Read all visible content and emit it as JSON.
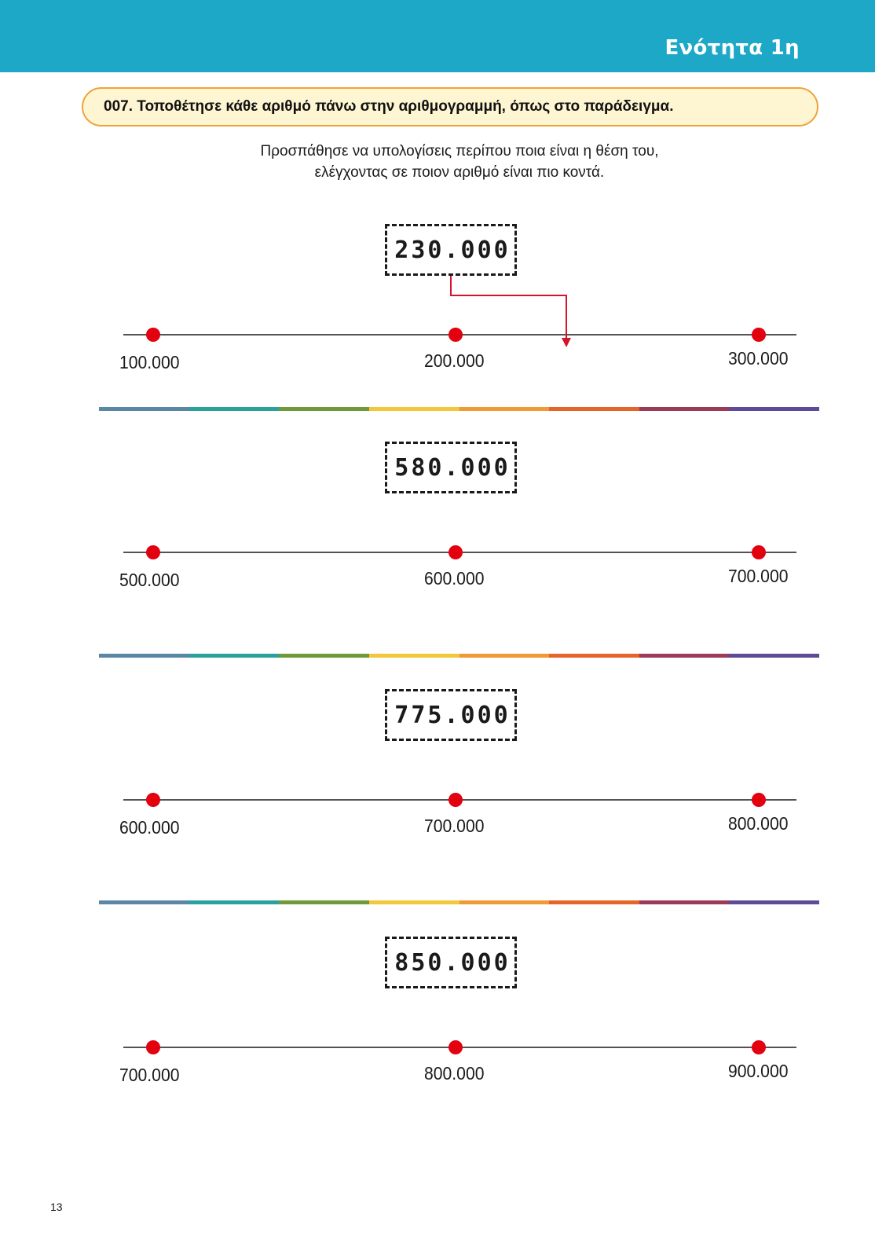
{
  "header": {
    "section_title": "Ενότητα 1η",
    "band_color": "#1da8c7"
  },
  "task": {
    "title": "007. Τοποθέτησε κάθε αριθμό πάνω στην αριθμογραμμή, όπως στο παράδειγμα.",
    "instruction_line1": "Προσπάθησε να υπολογίσεις περίπου ποια είναι η θέση του,",
    "instruction_line2": "ελέγχοντας σε ποιον αριθμό είναι πιο κοντά."
  },
  "exercises": [
    {
      "target": "230.000",
      "ticks": [
        "100.000",
        "200.000",
        "300.000"
      ],
      "example": true
    },
    {
      "target": "580.000",
      "ticks": [
        "500.000",
        "600.000",
        "700.000"
      ],
      "example": false
    },
    {
      "target": "775.000",
      "ticks": [
        "600.000",
        "700.000",
        "800.000"
      ],
      "example": false
    },
    {
      "target": "850.000",
      "ticks": [
        "700.000",
        "800.000",
        "900.000"
      ],
      "example": false
    }
  ],
  "colors": {
    "dot": "#e3000f",
    "arrow": "#d4142a",
    "rainbow": [
      "#5b87a6",
      "#2aa19c",
      "#6f9a3a",
      "#f2c73a",
      "#ef9a35",
      "#e4642a",
      "#9c3b57",
      "#5e4a97"
    ]
  },
  "page_number": "13"
}
